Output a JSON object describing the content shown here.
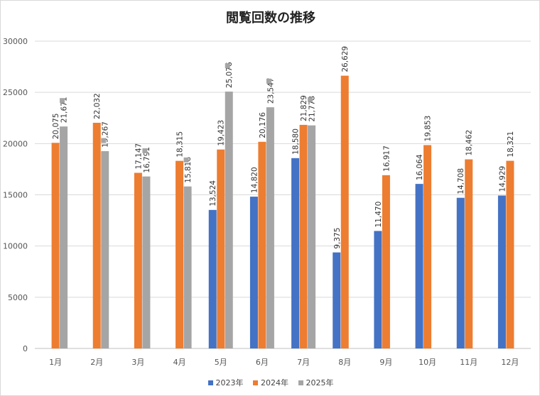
{
  "chart_data": {
    "type": "bar",
    "title": "閲覧回数の推移",
    "categories": [
      "1月",
      "2月",
      "3月",
      "4月",
      "5月",
      "6月",
      "7月",
      "8月",
      "9月",
      "10月",
      "11月",
      "12月"
    ],
    "series": [
      {
        "name": "2023年",
        "color": "#4472c4",
        "values": [
          null,
          null,
          null,
          null,
          13524,
          14820,
          18580,
          9375,
          11470,
          16064,
          14708,
          14929
        ],
        "labels": [
          null,
          null,
          null,
          null,
          "13,524",
          "14,820",
          "18,580",
          "9,375",
          "11,470",
          "16,064",
          "14,708",
          "14,929"
        ]
      },
      {
        "name": "2024年",
        "color": "#ed7d31",
        "values": [
          20075,
          22032,
          17147,
          18315,
          19423,
          20176,
          21829,
          26629,
          16917,
          19853,
          18462,
          18321
        ],
        "labels": [
          "20,075",
          "22,032",
          "17,147",
          "18,315",
          "19,423",
          "20,176",
          "21,829",
          "26,629",
          "16,917",
          "19,853",
          "18,462",
          "18,321"
        ]
      },
      {
        "name": "2025年",
        "color": "#a5a5a5",
        "values": [
          21671,
          19267,
          16791,
          15816,
          25076,
          23547,
          21778,
          null,
          null,
          null,
          null,
          null
        ],
        "labels": [
          "21,671",
          "19,267",
          "16,791",
          "15,816",
          "25,076",
          "23,547",
          "21,778",
          null,
          null,
          null,
          null,
          null
        ]
      }
    ],
    "markers": {
      "color": "#a5a5a5",
      "values": [
        24200,
        20300,
        19300,
        18400,
        27600,
        26100,
        24300,
        null,
        null,
        null,
        null,
        null
      ]
    },
    "ylim": [
      0,
      30000
    ],
    "yticks": [
      "0",
      "5000",
      "10000",
      "15000",
      "20000",
      "25000",
      "30000"
    ],
    "grid": true,
    "legend": "bottom"
  }
}
